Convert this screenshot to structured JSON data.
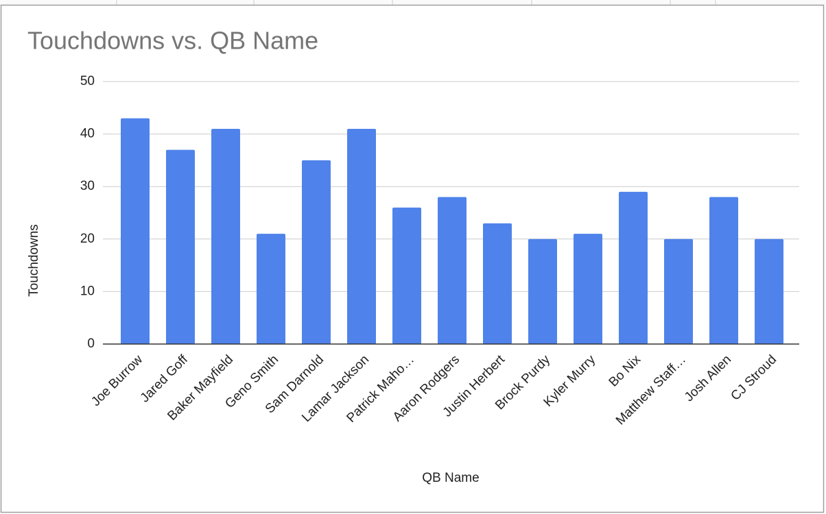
{
  "chart_data": {
    "type": "bar",
    "title": "Touchdowns vs. QB Name",
    "x_label": "QB Name",
    "y_label": "Touchdowns",
    "categories": [
      "Joe Burrow",
      "Jared Goff",
      "Baker Mayfield",
      "Geno Smith",
      "Sam Darnold",
      "Lamar Jackson",
      "Patrick Maho…",
      "Aaron Rodgers",
      "Justin Herbert",
      "Brock Purdy",
      "Kyler Murry",
      "Bo Nix",
      "Matthew Staff…",
      "Josh Allen",
      "CJ Stroud"
    ],
    "values": [
      43,
      37,
      41,
      21,
      35,
      41,
      26,
      28,
      23,
      20,
      21,
      29,
      20,
      28,
      20
    ],
    "color": "#4f83eb",
    "ylim": [
      0,
      50
    ],
    "yticks": [
      0,
      10,
      20,
      30,
      40,
      50
    ],
    "grid": true
  }
}
